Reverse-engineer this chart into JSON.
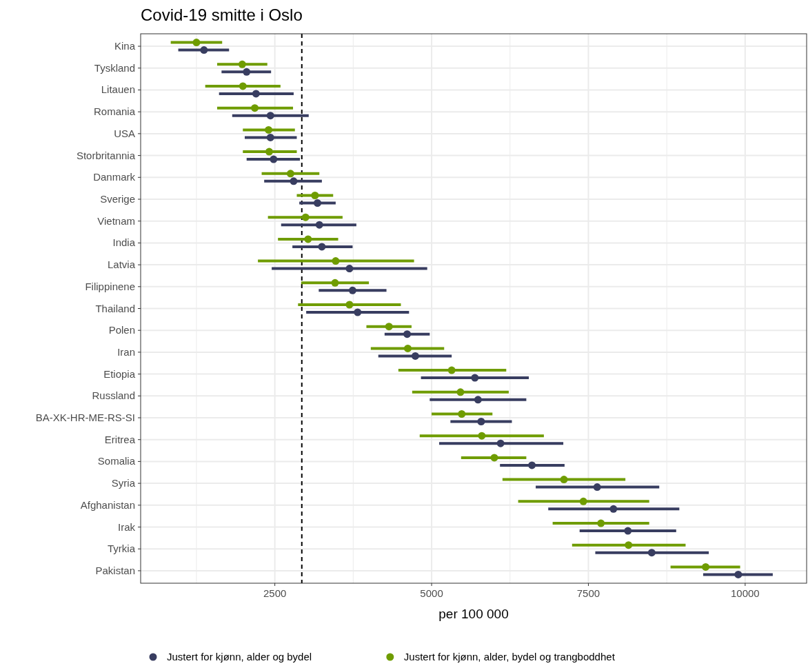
{
  "chart_data": {
    "type": "scatter",
    "title": "Covid-19 smitte i Oslo",
    "xlabel": "per 100 000",
    "orientation": "horizontal",
    "categories": [
      "Kina",
      "Tyskland",
      "Litauen",
      "Romania",
      "USA",
      "Storbritannia",
      "Danmark",
      "Sverige",
      "Vietnam",
      "India",
      "Latvia",
      "Filippinene",
      "Thailand",
      "Polen",
      "Iran",
      "Etiopia",
      "Russland",
      "BA-XK-HR-ME-RS-SI",
      "Eritrea",
      "Somalia",
      "Syria",
      "Afghanistan",
      "Irak",
      "Tyrkia",
      "Pakistan"
    ],
    "series": [
      {
        "name": "Justert for kjønn, alder og bydel",
        "color": "#383d60",
        "values": [
          1370,
          2050,
          2200,
          2430,
          2430,
          2480,
          2800,
          3180,
          3210,
          3250,
          3690,
          3740,
          3820,
          4610,
          4740,
          5690,
          5740,
          5790,
          6100,
          6600,
          7640,
          7900,
          8130,
          8510,
          9890
        ],
        "errors": [
          [
            960,
            1770
          ],
          [
            1650,
            2440
          ],
          [
            1610,
            2800
          ],
          [
            1820,
            3040
          ],
          [
            2020,
            2850
          ],
          [
            2050,
            2900
          ],
          [
            2330,
            3250
          ],
          [
            2890,
            3470
          ],
          [
            2600,
            3800
          ],
          [
            2780,
            3740
          ],
          [
            2450,
            4930
          ],
          [
            3200,
            4280
          ],
          [
            3000,
            4640
          ],
          [
            4250,
            4970
          ],
          [
            4150,
            5320
          ],
          [
            4830,
            6550
          ],
          [
            4970,
            6510
          ],
          [
            5300,
            6280
          ],
          [
            5120,
            7100
          ],
          [
            6090,
            7120
          ],
          [
            6660,
            8630
          ],
          [
            6860,
            8950
          ],
          [
            7360,
            8900
          ],
          [
            7610,
            9420
          ],
          [
            9330,
            10440
          ]
        ]
      },
      {
        "name": "Justert for kjønn, alder, bydel og trangboddhet",
        "color": "#6f9c00",
        "values": [
          1250,
          1980,
          1990,
          2180,
          2400,
          2410,
          2750,
          3140,
          2990,
          3030,
          3470,
          3460,
          3690,
          4320,
          4620,
          5320,
          5460,
          5480,
          5800,
          6000,
          7110,
          7420,
          7700,
          8140,
          9370
        ],
        "errors": [
          [
            840,
            1660
          ],
          [
            1580,
            2380
          ],
          [
            1390,
            2590
          ],
          [
            1580,
            2790
          ],
          [
            1990,
            2820
          ],
          [
            1990,
            2850
          ],
          [
            2290,
            3210
          ],
          [
            2850,
            3430
          ],
          [
            2390,
            3580
          ],
          [
            2550,
            3510
          ],
          [
            2230,
            4720
          ],
          [
            2920,
            4000
          ],
          [
            2870,
            4510
          ],
          [
            3960,
            4680
          ],
          [
            4030,
            5200
          ],
          [
            4470,
            6190
          ],
          [
            4690,
            6230
          ],
          [
            5000,
            5970
          ],
          [
            4810,
            6790
          ],
          [
            5470,
            6510
          ],
          [
            6130,
            8090
          ],
          [
            6380,
            8470
          ],
          [
            6930,
            8470
          ],
          [
            7240,
            9050
          ],
          [
            8810,
            9920
          ]
        ]
      }
    ],
    "xlim": [
      360,
      10980
    ],
    "xticks": [
      2500,
      5000,
      7500,
      10000
    ],
    "grid": true,
    "legend": "bottom",
    "marker": "circle",
    "ref_lines": [
      {
        "axis": "x",
        "value": 2930,
        "color": "#000000",
        "line_style": "dashed"
      }
    ]
  }
}
